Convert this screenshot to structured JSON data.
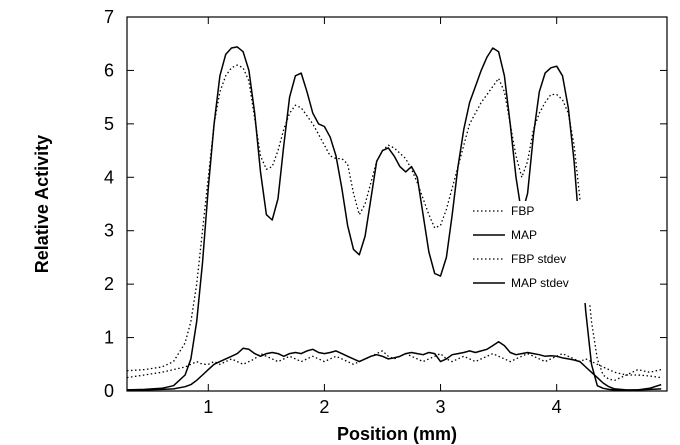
{
  "chart_data": {
    "type": "line",
    "title": "",
    "xlabel": "Position (mm)",
    "ylabel": "Relative Activity",
    "xlim": [
      0.3,
      4.95
    ],
    "ylim": [
      0,
      7
    ],
    "xticks": [
      1,
      2,
      3,
      4
    ],
    "yticks": [
      0,
      1,
      2,
      3,
      4,
      5,
      6,
      7
    ],
    "grid": false,
    "legend_position": "center-right",
    "series": [
      {
        "name": "FBP",
        "style": "dotted",
        "x": [
          0.3,
          0.45,
          0.6,
          0.7,
          0.8,
          0.85,
          0.9,
          0.95,
          1.0,
          1.05,
          1.1,
          1.15,
          1.2,
          1.25,
          1.3,
          1.35,
          1.4,
          1.45,
          1.5,
          1.55,
          1.6,
          1.65,
          1.7,
          1.75,
          1.8,
          1.85,
          1.9,
          1.95,
          2.0,
          2.05,
          2.1,
          2.15,
          2.2,
          2.25,
          2.3,
          2.35,
          2.4,
          2.45,
          2.5,
          2.55,
          2.6,
          2.65,
          2.7,
          2.75,
          2.8,
          2.85,
          2.9,
          2.95,
          3.0,
          3.05,
          3.1,
          3.15,
          3.2,
          3.25,
          3.3,
          3.35,
          3.4,
          3.45,
          3.5,
          3.55,
          3.6,
          3.65,
          3.7,
          3.75,
          3.8,
          3.85,
          3.9,
          3.95,
          4.0,
          4.05,
          4.1,
          4.15,
          4.2,
          4.25,
          4.3,
          4.35,
          4.4,
          4.45,
          4.5,
          4.6,
          4.7,
          4.8,
          4.9
        ],
        "y": [
          0.38,
          0.4,
          0.45,
          0.55,
          0.9,
          1.3,
          2.0,
          3.0,
          4.0,
          5.0,
          5.6,
          5.9,
          6.05,
          6.1,
          6.05,
          5.8,
          5.1,
          4.4,
          4.15,
          4.2,
          4.5,
          4.9,
          5.2,
          5.35,
          5.3,
          5.15,
          5.0,
          4.8,
          4.6,
          4.4,
          4.35,
          4.35,
          4.25,
          3.7,
          3.3,
          3.5,
          3.9,
          4.3,
          4.5,
          4.6,
          4.55,
          4.45,
          4.35,
          4.15,
          3.9,
          3.6,
          3.3,
          3.05,
          3.1,
          3.4,
          3.8,
          4.2,
          4.6,
          5.0,
          5.2,
          5.4,
          5.55,
          5.7,
          5.85,
          5.6,
          5.0,
          4.4,
          4.0,
          4.3,
          4.9,
          5.2,
          5.4,
          5.55,
          5.55,
          5.45,
          5.2,
          4.6,
          3.6,
          2.4,
          1.3,
          0.6,
          0.3,
          0.22,
          0.2,
          0.3,
          0.4,
          0.35,
          0.4
        ]
      },
      {
        "name": "MAP",
        "style": "solid",
        "x": [
          0.3,
          0.45,
          0.6,
          0.7,
          0.8,
          0.85,
          0.9,
          0.95,
          1.0,
          1.05,
          1.1,
          1.15,
          1.2,
          1.25,
          1.3,
          1.35,
          1.4,
          1.45,
          1.5,
          1.55,
          1.6,
          1.65,
          1.7,
          1.75,
          1.8,
          1.85,
          1.9,
          1.95,
          2.0,
          2.05,
          2.1,
          2.15,
          2.2,
          2.25,
          2.3,
          2.35,
          2.4,
          2.45,
          2.5,
          2.55,
          2.6,
          2.65,
          2.7,
          2.75,
          2.8,
          2.85,
          2.9,
          2.95,
          3.0,
          3.05,
          3.1,
          3.15,
          3.2,
          3.25,
          3.3,
          3.35,
          3.4,
          3.45,
          3.5,
          3.55,
          3.6,
          3.65,
          3.7,
          3.75,
          3.8,
          3.85,
          3.9,
          3.95,
          4.0,
          4.05,
          4.1,
          4.15,
          4.2,
          4.25,
          4.3,
          4.35,
          4.4,
          4.45,
          4.5,
          4.6,
          4.7,
          4.8,
          4.9
        ],
        "y": [
          0.02,
          0.03,
          0.05,
          0.1,
          0.3,
          0.6,
          1.3,
          2.4,
          3.8,
          5.0,
          5.9,
          6.3,
          6.42,
          6.44,
          6.35,
          6.0,
          5.2,
          4.1,
          3.3,
          3.2,
          3.6,
          4.6,
          5.5,
          5.9,
          5.95,
          5.6,
          5.2,
          5.0,
          4.95,
          4.75,
          4.4,
          3.8,
          3.1,
          2.65,
          2.55,
          2.9,
          3.6,
          4.3,
          4.5,
          4.55,
          4.4,
          4.2,
          4.1,
          4.2,
          4.0,
          3.3,
          2.6,
          2.2,
          2.15,
          2.5,
          3.3,
          4.2,
          4.9,
          5.4,
          5.7,
          6.0,
          6.25,
          6.42,
          6.35,
          5.9,
          5.0,
          4.0,
          3.3,
          3.7,
          4.8,
          5.6,
          5.95,
          6.05,
          6.08,
          5.9,
          5.3,
          4.3,
          2.9,
          1.5,
          0.5,
          0.1,
          0.05,
          0.03,
          0.02,
          0.01,
          0.02,
          0.05,
          0.12
        ]
      },
      {
        "name": "FBP stdev",
        "style": "dotted",
        "x": [
          0.3,
          0.45,
          0.6,
          0.7,
          0.8,
          0.85,
          0.9,
          0.95,
          1.0,
          1.05,
          1.1,
          1.15,
          1.2,
          1.25,
          1.3,
          1.35,
          1.4,
          1.45,
          1.5,
          1.55,
          1.6,
          1.65,
          1.7,
          1.75,
          1.8,
          1.85,
          1.9,
          1.95,
          2.0,
          2.05,
          2.1,
          2.15,
          2.2,
          2.25,
          2.3,
          2.35,
          2.4,
          2.45,
          2.5,
          2.55,
          2.6,
          2.65,
          2.7,
          2.75,
          2.8,
          2.85,
          2.9,
          2.95,
          3.0,
          3.05,
          3.1,
          3.15,
          3.2,
          3.25,
          3.3,
          3.35,
          3.4,
          3.45,
          3.5,
          3.55,
          3.6,
          3.65,
          3.7,
          3.75,
          3.8,
          3.85,
          3.9,
          3.95,
          4.0,
          4.05,
          4.1,
          4.15,
          4.2,
          4.25,
          4.3,
          4.35,
          4.4,
          4.45,
          4.5,
          4.6,
          4.7,
          4.8,
          4.9
        ],
        "y": [
          0.25,
          0.3,
          0.35,
          0.4,
          0.45,
          0.5,
          0.55,
          0.5,
          0.5,
          0.55,
          0.5,
          0.55,
          0.6,
          0.55,
          0.5,
          0.55,
          0.6,
          0.7,
          0.65,
          0.6,
          0.55,
          0.6,
          0.65,
          0.6,
          0.55,
          0.6,
          0.65,
          0.6,
          0.55,
          0.6,
          0.65,
          0.6,
          0.55,
          0.5,
          0.55,
          0.6,
          0.65,
          0.7,
          0.75,
          0.65,
          0.6,
          0.65,
          0.7,
          0.65,
          0.6,
          0.55,
          0.6,
          0.65,
          0.7,
          0.6,
          0.55,
          0.6,
          0.65,
          0.6,
          0.55,
          0.6,
          0.65,
          0.7,
          0.65,
          0.6,
          0.55,
          0.6,
          0.65,
          0.7,
          0.65,
          0.6,
          0.55,
          0.6,
          0.65,
          0.7,
          0.65,
          0.6,
          0.55,
          0.6,
          0.55,
          0.5,
          0.45,
          0.4,
          0.35,
          0.3,
          0.3,
          0.28,
          0.25
        ]
      },
      {
        "name": "MAP stdev",
        "style": "solid",
        "x": [
          0.3,
          0.45,
          0.6,
          0.7,
          0.8,
          0.85,
          0.9,
          0.95,
          1.0,
          1.05,
          1.1,
          1.15,
          1.2,
          1.25,
          1.3,
          1.35,
          1.4,
          1.45,
          1.5,
          1.55,
          1.6,
          1.65,
          1.7,
          1.75,
          1.8,
          1.85,
          1.9,
          1.95,
          2.0,
          2.05,
          2.1,
          2.15,
          2.2,
          2.25,
          2.3,
          2.35,
          2.4,
          2.45,
          2.5,
          2.55,
          2.6,
          2.65,
          2.7,
          2.75,
          2.8,
          2.85,
          2.9,
          2.95,
          3.0,
          3.05,
          3.1,
          3.15,
          3.2,
          3.25,
          3.3,
          3.35,
          3.4,
          3.45,
          3.5,
          3.55,
          3.6,
          3.65,
          3.7,
          3.75,
          3.8,
          3.85,
          3.9,
          3.95,
          4.0,
          4.05,
          4.1,
          4.15,
          4.2,
          4.25,
          4.3,
          4.35,
          4.4,
          4.45,
          4.5,
          4.6,
          4.7,
          4.8,
          4.9
        ],
        "y": [
          0.02,
          0.02,
          0.03,
          0.04,
          0.08,
          0.12,
          0.2,
          0.3,
          0.4,
          0.5,
          0.55,
          0.6,
          0.65,
          0.7,
          0.8,
          0.78,
          0.7,
          0.65,
          0.7,
          0.72,
          0.7,
          0.65,
          0.7,
          0.72,
          0.7,
          0.75,
          0.78,
          0.72,
          0.7,
          0.72,
          0.75,
          0.7,
          0.65,
          0.6,
          0.55,
          0.6,
          0.65,
          0.68,
          0.65,
          0.6,
          0.62,
          0.65,
          0.7,
          0.72,
          0.7,
          0.68,
          0.72,
          0.7,
          0.55,
          0.6,
          0.68,
          0.7,
          0.72,
          0.75,
          0.72,
          0.75,
          0.78,
          0.85,
          0.92,
          0.85,
          0.72,
          0.68,
          0.7,
          0.72,
          0.7,
          0.68,
          0.65,
          0.66,
          0.65,
          0.62,
          0.6,
          0.58,
          0.55,
          0.45,
          0.35,
          0.25,
          0.15,
          0.08,
          0.04,
          0.02,
          0.02,
          0.03,
          0.04
        ]
      }
    ]
  }
}
